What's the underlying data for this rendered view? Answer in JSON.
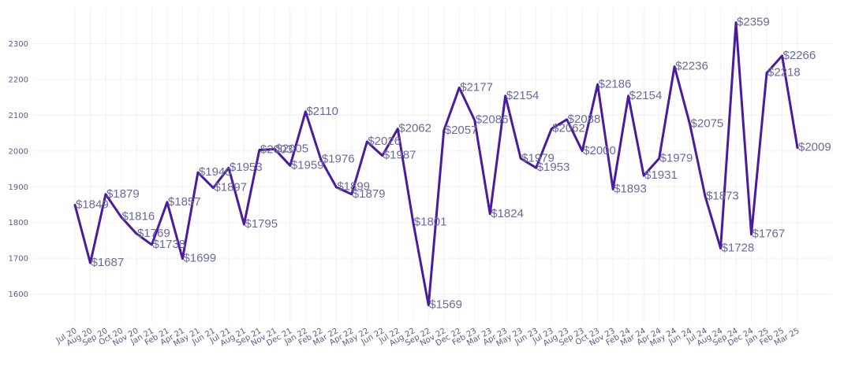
{
  "chart_data": {
    "type": "line",
    "title": "",
    "xlabel": "",
    "ylabel": "",
    "ylim": [
      1520,
      2400
    ],
    "y_ticks": [
      1600,
      1700,
      1800,
      1900,
      2000,
      2100,
      2200,
      2300
    ],
    "grid": true,
    "value_prefix": "$",
    "categories": [
      "Jul 20",
      "Aug 20",
      "Sep 20",
      "Oct 20",
      "Nov 20",
      "Jan 21",
      "Feb 21",
      "Apr 21",
      "May 21",
      "Jun 21",
      "Jul 21",
      "Aug 21",
      "Sep 21",
      "Nov 21",
      "Dec 21",
      "Jan 22",
      "Feb 22",
      "Mar 22",
      "Apr 22",
      "May 22",
      "Jun 22",
      "Jul 22",
      "Aug 22",
      "Sep 22",
      "Nov 22",
      "Dec 22",
      "Feb 23",
      "Mar 23",
      "Apr 23",
      "May 23",
      "Jun 23",
      "Jul 23",
      "Aug 23",
      "Sep 23",
      "Oct 23",
      "Nov 23",
      "Feb 24",
      "Mar 24",
      "Apr 24",
      "May 24",
      "Jun 24",
      "Jul 24",
      "Aug 24",
      "Sep 24",
      "Dec 24",
      "Jan 25",
      "Feb 25",
      "Mar 25"
    ],
    "series": [
      {
        "name": "Price",
        "color": "#4a1aa0",
        "values": [
          1849,
          1687,
          1879,
          1816,
          1769,
          1738,
          1857,
          1699,
          1940,
          1897,
          1953,
          1795,
          2003,
          2005,
          1959,
          2110,
          1976,
          1899,
          1879,
          2026,
          1987,
          2062,
          1801,
          1569,
          2057,
          2177,
          2086,
          1824,
          2154,
          1979,
          1953,
          2062,
          2088,
          2000,
          2186,
          1893,
          2154,
          1931,
          1979,
          2236,
          2075,
          1873,
          1728,
          2359,
          1767,
          2218,
          2266,
          2009
        ]
      }
    ]
  }
}
